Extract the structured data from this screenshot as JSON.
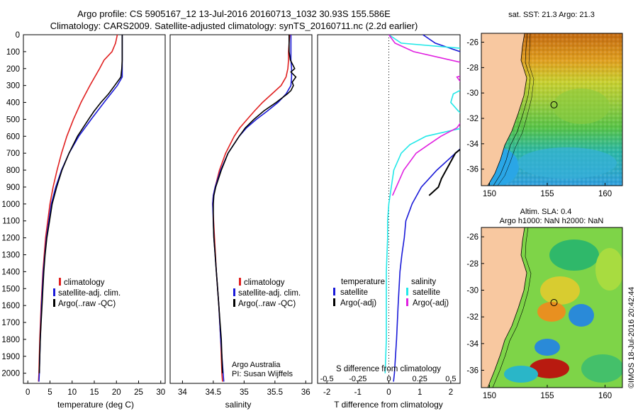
{
  "header": {
    "line1": "Argo profile: CS 5905167_12 13-Jul-2016 20160713_1032 30.93S 155.586E",
    "line2": "Climatology: CARS2009. Satellite-adjusted climatology: synTS_20160711.nc (2.2d earlier)"
  },
  "colors": {
    "climatology": "#e02020",
    "satellite": "#1a1ad8",
    "argo": "#000000",
    "sal_satellite": "#22e8e8",
    "sal_argo": "#e020e0",
    "land": "#f8c8a0"
  },
  "depth_axis": {
    "ticks": [
      0,
      100,
      200,
      300,
      400,
      500,
      600,
      700,
      800,
      900,
      1000,
      1100,
      1200,
      1300,
      1400,
      1500,
      1600,
      1700,
      1800,
      1900,
      2000
    ],
    "ylim": [
      0,
      2060
    ]
  },
  "chart_data": [
    {
      "type": "line",
      "id": "temperature",
      "xlabel": "temperature (deg C)",
      "xlim": [
        -1,
        31
      ],
      "xticks": [
        0,
        5,
        10,
        15,
        20,
        25,
        30
      ],
      "legend": [
        "climatology",
        "satellite-adj. clim.",
        "Argo(..raw -QC)"
      ],
      "series": [
        {
          "name": "climatology",
          "depth": [
            0,
            50,
            100,
            150,
            200,
            300,
            400,
            500,
            600,
            700,
            800,
            900,
            1000,
            1200,
            1400,
            1600,
            1800,
            2000,
            2050
          ],
          "values": [
            20.2,
            19.8,
            19.0,
            17.2,
            16.2,
            14.0,
            12.0,
            10.3,
            8.8,
            7.6,
            6.6,
            5.7,
            5.0,
            4.0,
            3.4,
            3.0,
            2.7,
            2.5,
            2.4
          ]
        },
        {
          "name": "satellite-adj. clim.",
          "depth": [
            0,
            50,
            100,
            150,
            200,
            250,
            300,
            400,
            500,
            600,
            700,
            800,
            900,
            1000,
            1200,
            1400,
            1600,
            1800,
            2000,
            2050
          ],
          "values": [
            21.3,
            21.3,
            21.3,
            21.3,
            21.3,
            21.3,
            20.2,
            17.2,
            14.3,
            11.5,
            9.3,
            7.6,
            6.3,
            5.3,
            4.2,
            3.5,
            3.1,
            2.8,
            2.6,
            2.5
          ]
        },
        {
          "name": "Argo(..raw -QC)",
          "depth": [
            0,
            50,
            100,
            150,
            200,
            250,
            300,
            350,
            400,
            450,
            500,
            600,
            700,
            800,
            900,
            1000,
            1100,
            1200,
            1300,
            1400,
            1500,
            1600,
            1700,
            1800,
            1900,
            2000
          ],
          "values": [
            21.3,
            21.3,
            21.3,
            21.3,
            21.2,
            21.0,
            19.6,
            18.2,
            16.5,
            15.0,
            13.7,
            11.2,
            9.3,
            7.7,
            6.5,
            5.5,
            4.9,
            4.3,
            3.9,
            3.6,
            3.4,
            3.2,
            3.0,
            2.8,
            2.7,
            2.6
          ]
        }
      ]
    },
    {
      "type": "line",
      "id": "salinity",
      "xlabel": "salinity",
      "xlim": [
        33.8,
        36.1
      ],
      "xticks": [
        34,
        34.5,
        35,
        35.5,
        36
      ],
      "legend": [
        "climatology",
        "satellite-adj. clim.",
        "Argo(..raw -QC)"
      ],
      "annotation": [
        "Argo Australia",
        "PI: Susan Wijffels"
      ],
      "series": [
        {
          "name": "climatology",
          "depth": [
            0,
            50,
            100,
            150,
            200,
            250,
            300,
            350,
            400,
            450,
            500,
            550,
            600,
            700,
            800,
            900,
            950,
            1000,
            1200,
            1400,
            1600,
            1800,
            2000,
            2050
          ],
          "values": [
            35.74,
            35.73,
            35.72,
            35.72,
            35.71,
            35.68,
            35.6,
            35.45,
            35.3,
            35.17,
            35.05,
            34.93,
            34.84,
            34.7,
            34.6,
            34.53,
            34.5,
            34.49,
            34.52,
            34.55,
            34.59,
            34.62,
            34.64,
            34.65
          ]
        },
        {
          "name": "satellite-adj. clim.",
          "depth": [
            0,
            50,
            100,
            150,
            200,
            250,
            300,
            350,
            400,
            450,
            500,
            550,
            600,
            700,
            800,
            900,
            950,
            1000,
            1200,
            1400,
            1600,
            1800,
            2000,
            2050
          ],
          "values": [
            35.76,
            35.76,
            35.76,
            35.76,
            35.77,
            35.77,
            35.76,
            35.68,
            35.55,
            35.38,
            35.2,
            35.04,
            34.92,
            34.74,
            34.62,
            34.53,
            34.5,
            34.49,
            34.51,
            34.55,
            34.59,
            34.62,
            34.66,
            34.67
          ]
        },
        {
          "name": "Argo(..raw -QC)",
          "depth": [
            0,
            100,
            150,
            200,
            220,
            250,
            280,
            300,
            330,
            350,
            400,
            450,
            500,
            550,
            600,
            700,
            800,
            900,
            950,
            1000,
            1100,
            1200,
            1300,
            1400,
            1500,
            1600,
            1700,
            1800,
            1900,
            2000
          ],
          "values": [
            35.73,
            35.73,
            35.75,
            35.82,
            35.76,
            35.84,
            35.78,
            35.8,
            35.76,
            35.7,
            35.52,
            35.32,
            35.16,
            35.02,
            34.92,
            34.74,
            34.63,
            34.54,
            34.51,
            34.5,
            34.5,
            34.51,
            34.53,
            34.55,
            34.57,
            34.59,
            34.61,
            34.63,
            34.64,
            34.65
          ]
        }
      ]
    },
    {
      "type": "line",
      "id": "differences",
      "xlabel_top": "S difference from climatology",
      "xlabel": "T difference from climatology",
      "xlim": [
        -2.3,
        2.3
      ],
      "xticks": [
        -2,
        -1,
        0,
        1,
        2
      ],
      "top_tick_labels": [
        "-0.5",
        "-0.25",
        "0",
        "0.25",
        "0.5"
      ],
      "legend_headers": [
        "temperature",
        "salinity"
      ],
      "legend": [
        "satellite",
        "Argo(-adj)",
        "satellite",
        "Argo(-adj)"
      ],
      "series": [
        {
          "name": "satellite",
          "depth": [
            0,
            50,
            100,
            150,
            200,
            300,
            400,
            500,
            600,
            700,
            800,
            900,
            1000,
            1100,
            1200,
            1300,
            1400,
            1600,
            1800,
            2000,
            2050
          ],
          "values": [
            1.1,
            1.5,
            2.3,
            2.6,
            2.9,
            3.0,
            3.1,
            3.2,
            2.75,
            2.15,
            1.55,
            1.05,
            0.75,
            0.55,
            0.5,
            0.42,
            0.36,
            0.3,
            0.25,
            0.18,
            0.15
          ]
        },
        {
          "name": "Argo(-adj)",
          "depth": [
            600,
            650,
            700,
            750,
            800,
            850,
            900,
            950
          ],
          "values": [
            2.7,
            2.5,
            2.15,
            2.0,
            1.85,
            1.7,
            1.6,
            1.3
          ]
        },
        {
          "name": "satellite",
          "depth": [
            0,
            50,
            100,
            150,
            200,
            250,
            300,
            350,
            400,
            450,
            500,
            550,
            600,
            650,
            700,
            800,
            900,
            1000,
            1100,
            1200,
            1400,
            1600,
            1800,
            2000
          ],
          "values": [
            0.0,
            0.1,
            0.9,
            1.2,
            1.02,
            0.72,
            0.65,
            0.52,
            0.5,
            0.56,
            0.64,
            0.6,
            0.3,
            0.17,
            0.1,
            0.04,
            0.02,
            0.0,
            -0.01,
            -0.01,
            -0.02,
            -0.02,
            -0.02,
            -0.03
          ]
        },
        {
          "name": "Argo(-adj)",
          "depth": [
            0,
            50,
            100,
            150,
            200,
            250,
            300,
            330,
            350,
            400,
            450,
            500,
            550,
            600,
            650,
            700,
            800,
            900,
            950
          ],
          "values": [
            0.0,
            0.05,
            0.2,
            0.5,
            0.8,
            0.55,
            0.6,
            0.82,
            0.92,
            0.88,
            0.7,
            0.6,
            0.55,
            0.42,
            0.32,
            0.22,
            0.12,
            0.06,
            0.03
          ]
        }
      ]
    },
    {
      "type": "heatmap",
      "id": "sst-map",
      "title": "sat. SST: 21.3 Argo: 21.3",
      "xticks": [
        150,
        155,
        160
      ],
      "yticks": [
        -26,
        -28,
        -30,
        -32,
        -34,
        -36
      ],
      "xlim": [
        149.3,
        161.5
      ],
      "ylim": [
        -37.3,
        -25.3
      ],
      "marker": {
        "lon": 155.586,
        "lat": -30.93
      }
    },
    {
      "type": "heatmap",
      "id": "sla-map",
      "title": "Altim. SLA: 0.4",
      "subtitle": "Argo h1000: NaN h2000: NaN",
      "xticks": [
        150,
        155,
        160
      ],
      "yticks": [
        -26,
        -28,
        -30,
        -32,
        -34,
        -36
      ],
      "xlim": [
        149.3,
        161.5
      ],
      "ylim": [
        -37.3,
        -25.3
      ],
      "marker": {
        "lon": 155.586,
        "lat": -30.93
      }
    }
  ],
  "watermark": "©IMOS 18-Jul-2016 20:42:44"
}
